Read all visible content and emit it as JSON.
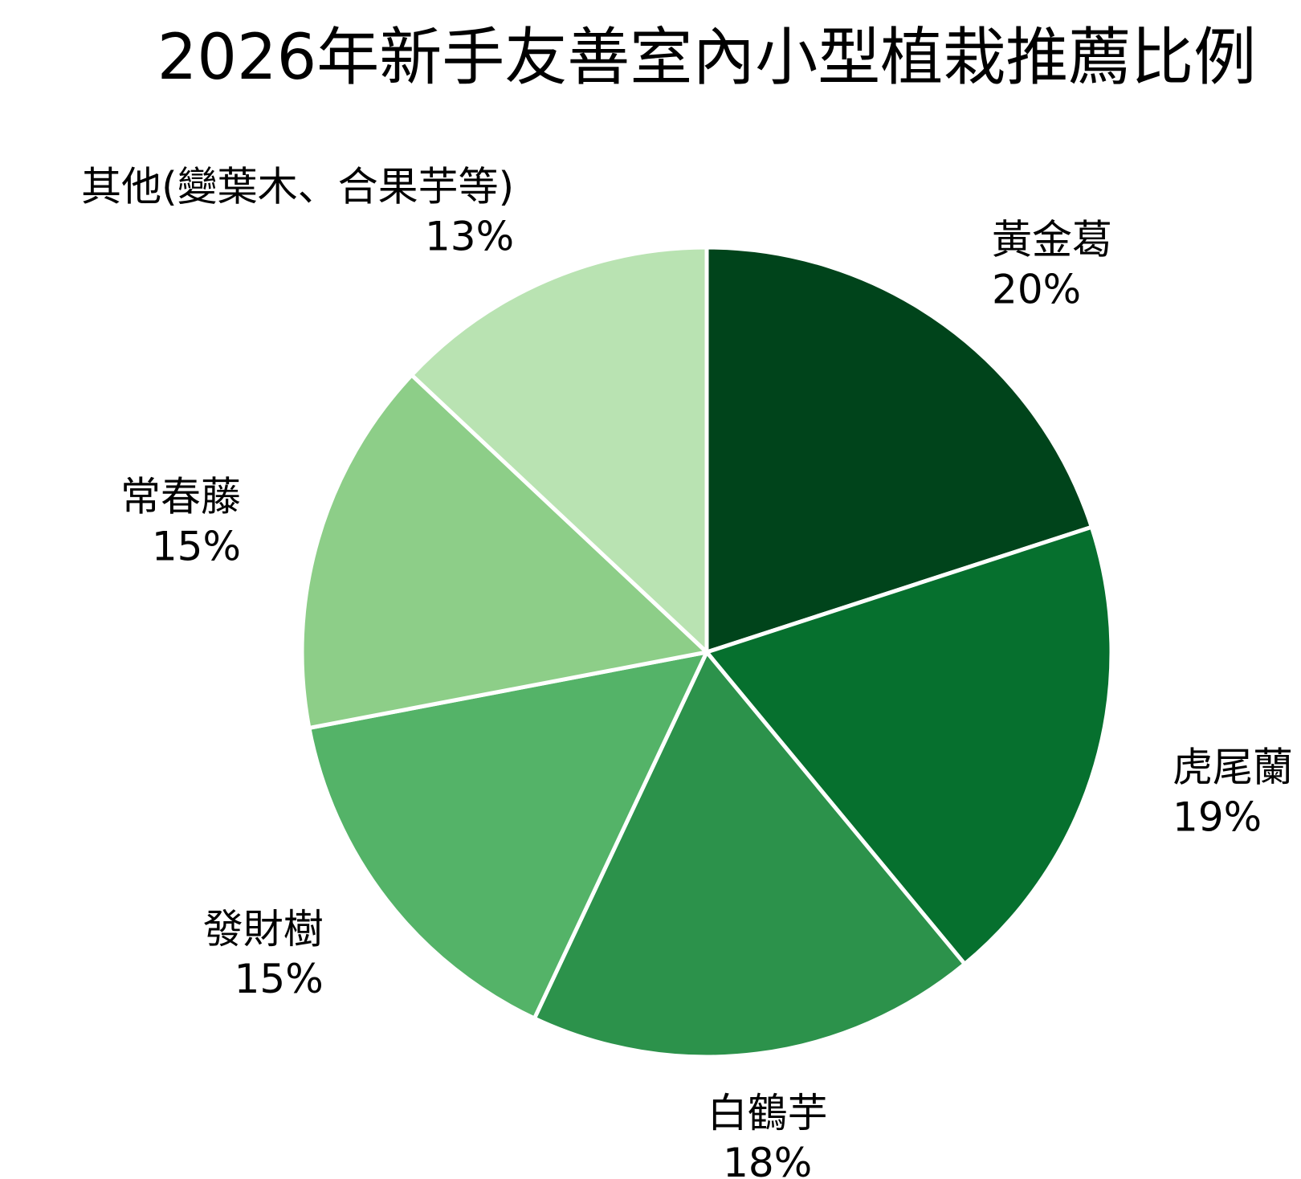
{
  "chart_data": {
    "type": "pie",
    "title": "2026年新手友善室內小型植栽推薦比例",
    "start_angle": "top",
    "direction": "clockwise",
    "legend": "none",
    "slices": [
      {
        "label": "黃金葛",
        "value": 20,
        "display": "20%",
        "color": "#00441b"
      },
      {
        "label": "虎尾蘭",
        "value": 19,
        "display": "19%",
        "color": "#06702e"
      },
      {
        "label": "白鶴芋",
        "value": 18,
        "display": "18%",
        "color": "#2c924b"
      },
      {
        "label": "發財樹",
        "value": 15,
        "display": "15%",
        "color": "#54b368"
      },
      {
        "label": "常春藤",
        "value": 15,
        "display": "15%",
        "color": "#8dce88"
      },
      {
        "label": "其他(變葉木、合果芋等)",
        "value": 13,
        "display": "13%",
        "color": "#b9e3b2"
      }
    ],
    "separator_color": "#ffffff"
  }
}
